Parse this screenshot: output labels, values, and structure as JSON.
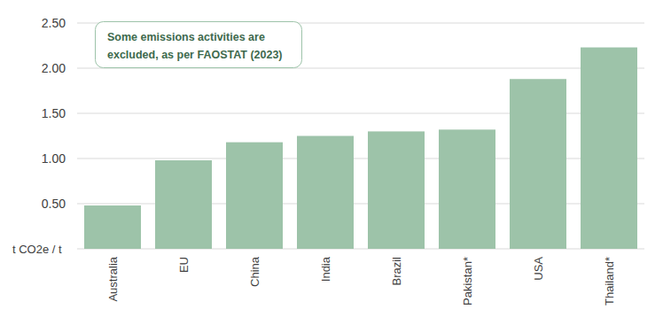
{
  "chart_data": {
    "type": "bar",
    "annotation": [
      "Some emissions activities are",
      "excluded, as per FAOSTAT (2023)"
    ],
    "y_label": "t CO2e / t",
    "categories": [
      "Australia",
      "EU",
      "China",
      "India",
      "Brazil",
      "Pakistan*",
      "USA",
      "Thailand*"
    ],
    "values": [
      0.48,
      0.98,
      1.18,
      1.25,
      1.3,
      1.32,
      1.88,
      2.23
    ],
    "color": "#9dc3a9",
    "ylim": [
      0,
      2.5
    ],
    "yticks": [
      {
        "value": 0.5,
        "label": "0.50"
      },
      {
        "value": 1.0,
        "label": "1.00"
      },
      {
        "value": 1.5,
        "label": "1.50"
      },
      {
        "value": 2.0,
        "label": "2.00"
      },
      {
        "value": 2.5,
        "label": "2.50"
      }
    ],
    "grid": true
  }
}
